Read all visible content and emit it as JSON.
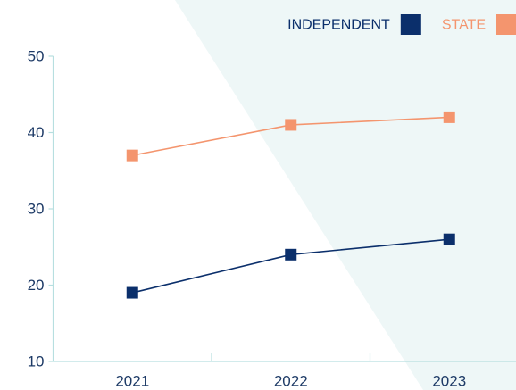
{
  "chart_data": {
    "type": "line",
    "categories": [
      "2021",
      "2022",
      "2023"
    ],
    "series": [
      {
        "name": "INDEPENDENT",
        "color": "#0b2f6b",
        "values": [
          19,
          24,
          26
        ]
      },
      {
        "name": "STATE",
        "color": "#f4956e",
        "values": [
          37,
          41,
          42
        ]
      }
    ],
    "ylim": [
      10,
      50
    ],
    "yticks": [
      10,
      20,
      30,
      40,
      50
    ],
    "legend": "top-right"
  }
}
